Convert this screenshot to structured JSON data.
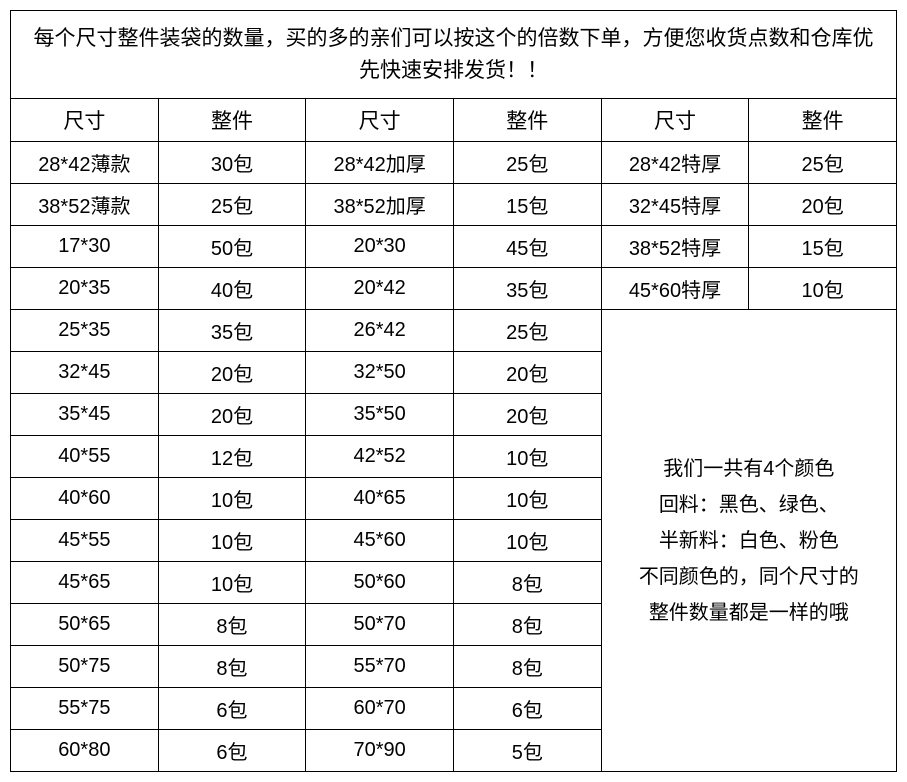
{
  "title": "每个尺寸整件装袋的数量，买的多的亲们可以按这个的倍数下单，方便您收货点数和仓库优先快速安排发货！！",
  "headers": {
    "size": "尺寸",
    "package": "整件"
  },
  "rows": [
    {
      "c1": "28*42薄款",
      "c2": "30包",
      "c3": "28*42加厚",
      "c4": "25包",
      "c5": "28*42特厚",
      "c6": "25包"
    },
    {
      "c1": "38*52薄款",
      "c2": "25包",
      "c3": "38*52加厚",
      "c4": "15包",
      "c5": "32*45特厚",
      "c6": "20包"
    },
    {
      "c1": "17*30",
      "c2": "50包",
      "c3": "20*30",
      "c4": "45包",
      "c5": "38*52特厚",
      "c6": "15包"
    },
    {
      "c1": "20*35",
      "c2": "40包",
      "c3": "20*42",
      "c4": "35包",
      "c5": "45*60特厚",
      "c6": "10包"
    },
    {
      "c1": "25*35",
      "c2": "35包",
      "c3": "26*42",
      "c4": "25包"
    },
    {
      "c1": "32*45",
      "c2": "20包",
      "c3": "32*50",
      "c4": "20包"
    },
    {
      "c1": "35*45",
      "c2": "20包",
      "c3": "35*50",
      "c4": "20包"
    },
    {
      "c1": "40*55",
      "c2": "12包",
      "c3": "42*52",
      "c4": "10包"
    },
    {
      "c1": "40*60",
      "c2": "10包",
      "c3": "40*65",
      "c4": "10包"
    },
    {
      "c1": "45*55",
      "c2": "10包",
      "c3": "45*60",
      "c4": "10包"
    },
    {
      "c1": "45*65",
      "c2": "10包",
      "c3": "50*60",
      "c4": "8包"
    },
    {
      "c1": "50*65",
      "c2": "8包",
      "c3": "50*70",
      "c4": "8包"
    },
    {
      "c1": "50*75",
      "c2": "8包",
      "c3": "55*70",
      "c4": "8包"
    },
    {
      "c1": "55*75",
      "c2": "6包",
      "c3": "60*70",
      "c4": "6包"
    },
    {
      "c1": "60*80",
      "c2": "6包",
      "c3": "70*90",
      "c4": "5包"
    }
  ],
  "note": {
    "line1": "我们一共有4个颜色",
    "line2": "回料：黑色、绿色、",
    "line3": "半新料：白色、粉色",
    "line4": "不同颜色的，同个尺寸的",
    "line5": "整件数量都是一样的哦"
  },
  "colors": {
    "border": "#000000",
    "background": "#ffffff",
    "text": "#000000"
  }
}
